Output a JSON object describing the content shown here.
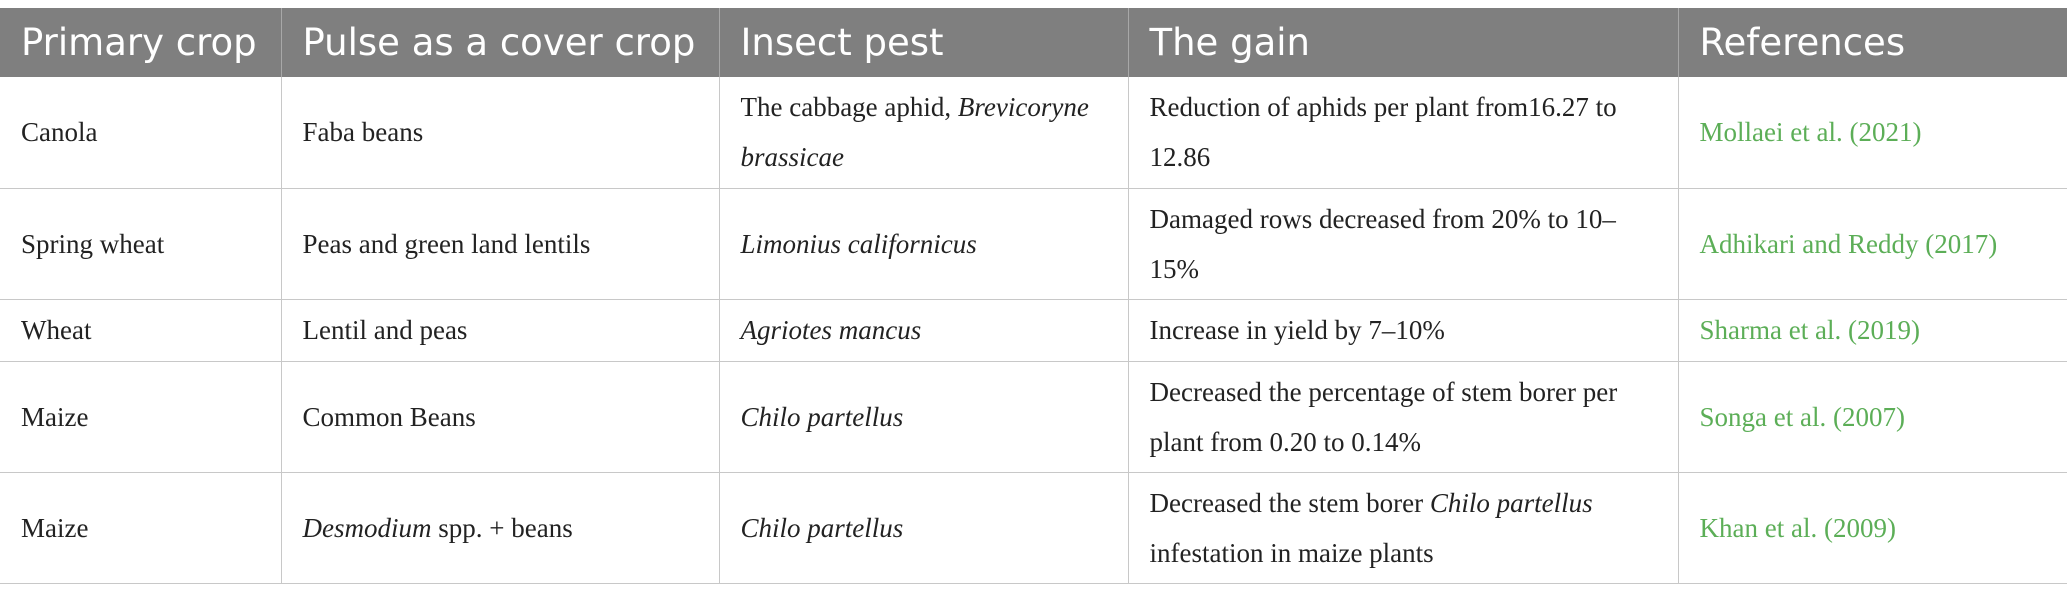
{
  "table": {
    "headers": [
      "Primary crop",
      "Pulse as a cover crop",
      "Insect pest",
      "The gain",
      "References"
    ],
    "rows": [
      {
        "primary_crop": "Canola",
        "pulse": "Faba beans",
        "pest_prefix": "The cabbage aphid, ",
        "pest_italic": "Brevicoryne brassicae",
        "gain_prefix": "Reduction of aphids per plant from16.27 to 12.86",
        "gain_italic": "",
        "gain_suffix": "",
        "reference": "Mollaei et al. (2021)"
      },
      {
        "primary_crop": "Spring wheat",
        "pulse": "Peas and green land lentils",
        "pest_prefix": "",
        "pest_italic": "Limonius californicus",
        "gain_prefix": "Damaged rows decreased from 20% to 10–15%",
        "gain_italic": "",
        "gain_suffix": "",
        "reference": "Adhikari and Reddy (2017)"
      },
      {
        "primary_crop": "Wheat",
        "pulse": "Lentil and peas",
        "pest_prefix": "",
        "pest_italic": "Agriotes mancus",
        "gain_prefix": "Increase in yield by 7–10%",
        "gain_italic": "",
        "gain_suffix": "",
        "reference": "Sharma et al. (2019)"
      },
      {
        "primary_crop": "Maize",
        "pulse": "Common Beans",
        "pest_prefix": "",
        "pest_italic": "Chilo partellus",
        "gain_prefix": "Decreased the percentage of stem borer per plant from 0.20 to 0.14%",
        "gain_italic": "",
        "gain_suffix": "",
        "reference": "Songa et al. (2007)"
      },
      {
        "primary_crop": "Maize",
        "pulse_italic": "Desmodium",
        "pulse_suffix": " spp. + beans",
        "pest_prefix": "",
        "pest_italic": "Chilo partellus",
        "gain_prefix": "Decreased the stem borer ",
        "gain_italic": "Chilo partellus",
        "gain_suffix": " infestation in maize plants",
        "reference": "Khan et al. (2009)"
      }
    ]
  }
}
